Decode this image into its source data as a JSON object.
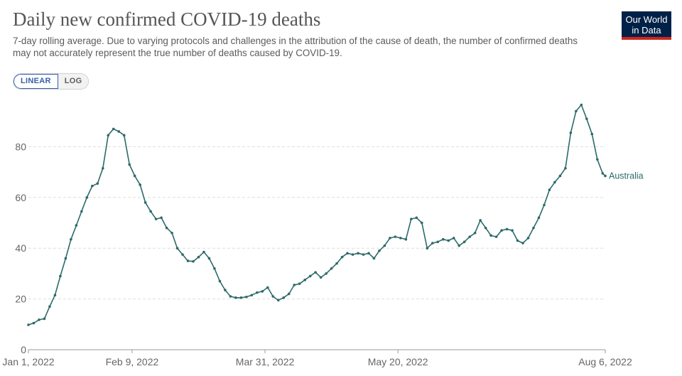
{
  "header": {
    "title": "Daily new confirmed COVID-19 deaths",
    "subtitle": "7-day rolling average. Due to varying protocols and challenges in the attribution of the cause of death, the number of confirmed deaths may not accurately represent the true number of deaths caused by COVID-19."
  },
  "logo": {
    "line1": "Our World",
    "line2": "in Data"
  },
  "scale_toggle": {
    "linear_label": "LINEAR",
    "log_label": "LOG",
    "selected": "linear"
  },
  "colors": {
    "series": "#2d6a6a",
    "grid": "#dddddd",
    "logo_bg": "#002147",
    "logo_accent": "#ce261e"
  },
  "chart_data": {
    "type": "line",
    "title": "Daily new confirmed COVID-19 deaths",
    "ylim": [
      0,
      100
    ],
    "yticks": [
      0,
      20,
      40,
      60,
      80
    ],
    "xticks": [
      "Jan 1, 2022",
      "Feb 9, 2022",
      "Mar 31, 2022",
      "May 20, 2022",
      "Aug 6, 2022"
    ],
    "grid": "horizontal dashed",
    "series": [
      {
        "name": "Australia",
        "x": [
          "2022-01-01",
          "2022-01-03",
          "2022-01-05",
          "2022-01-07",
          "2022-01-09",
          "2022-01-11",
          "2022-01-13",
          "2022-01-15",
          "2022-01-17",
          "2022-01-19",
          "2022-01-21",
          "2022-01-23",
          "2022-01-25",
          "2022-01-27",
          "2022-01-29",
          "2022-01-31",
          "2022-02-02",
          "2022-02-04",
          "2022-02-06",
          "2022-02-08",
          "2022-02-10",
          "2022-02-12",
          "2022-02-14",
          "2022-02-16",
          "2022-02-18",
          "2022-02-20",
          "2022-02-22",
          "2022-02-24",
          "2022-02-26",
          "2022-02-28",
          "2022-03-02",
          "2022-03-04",
          "2022-03-06",
          "2022-03-08",
          "2022-03-10",
          "2022-03-12",
          "2022-03-14",
          "2022-03-16",
          "2022-03-18",
          "2022-03-20",
          "2022-03-22",
          "2022-03-24",
          "2022-03-26",
          "2022-03-28",
          "2022-03-30",
          "2022-04-01",
          "2022-04-03",
          "2022-04-05",
          "2022-04-07",
          "2022-04-09",
          "2022-04-11",
          "2022-04-13",
          "2022-04-15",
          "2022-04-17",
          "2022-04-19",
          "2022-04-21",
          "2022-04-23",
          "2022-04-25",
          "2022-04-27",
          "2022-04-29",
          "2022-05-01",
          "2022-05-03",
          "2022-05-05",
          "2022-05-07",
          "2022-05-09",
          "2022-05-11",
          "2022-05-13",
          "2022-05-15",
          "2022-05-17",
          "2022-05-19",
          "2022-05-21",
          "2022-05-23",
          "2022-05-25",
          "2022-05-27",
          "2022-05-29",
          "2022-05-31",
          "2022-06-02",
          "2022-06-04",
          "2022-06-06",
          "2022-06-08",
          "2022-06-10",
          "2022-06-12",
          "2022-06-14",
          "2022-06-16",
          "2022-06-18",
          "2022-06-20",
          "2022-06-22",
          "2022-06-24",
          "2022-06-26",
          "2022-06-28",
          "2022-06-30",
          "2022-07-02",
          "2022-07-04",
          "2022-07-06",
          "2022-07-08",
          "2022-07-10",
          "2022-07-12",
          "2022-07-14",
          "2022-07-16",
          "2022-07-18",
          "2022-07-20",
          "2022-07-22",
          "2022-07-24",
          "2022-07-26",
          "2022-07-28",
          "2022-07-30",
          "2022-08-01",
          "2022-08-03",
          "2022-08-05",
          "2022-08-06"
        ],
        "values": [
          9.8,
          10.5,
          11.8,
          12.2,
          17.0,
          21.5,
          29.0,
          36.0,
          43.5,
          49.0,
          54.5,
          60.0,
          64.5,
          65.5,
          71.5,
          84.5,
          87.0,
          86.0,
          84.5,
          73.0,
          68.5,
          65.0,
          58.0,
          54.5,
          51.5,
          52.0,
          48.0,
          46.0,
          40.0,
          37.5,
          35.0,
          34.8,
          36.5,
          38.5,
          36.0,
          32.0,
          27.0,
          23.5,
          21.0,
          20.5,
          20.5,
          20.8,
          21.5,
          22.5,
          23.0,
          24.5,
          21.0,
          19.5,
          20.5,
          22.0,
          25.5,
          26.0,
          27.5,
          29.0,
          30.5,
          28.5,
          30.0,
          32.0,
          34.0,
          36.5,
          38.0,
          37.5,
          38.0,
          37.5,
          38.0,
          36.0,
          39.0,
          41.0,
          44.0,
          44.5,
          44.0,
          43.5,
          51.5,
          52.0,
          50.0,
          40.0,
          42.0,
          42.5,
          43.5,
          43.0,
          44.0,
          41.0,
          42.5,
          44.5,
          46.0,
          51.0,
          48.0,
          45.0,
          44.5,
          47.0,
          47.5,
          47.0,
          43.0,
          42.0,
          44.0,
          48.0,
          52.0,
          57.0,
          63.0,
          66.0,
          68.5,
          71.5,
          85.5,
          94.0,
          96.5,
          91.0,
          85.0,
          75.0,
          69.5,
          68.5
        ]
      }
    ]
  }
}
